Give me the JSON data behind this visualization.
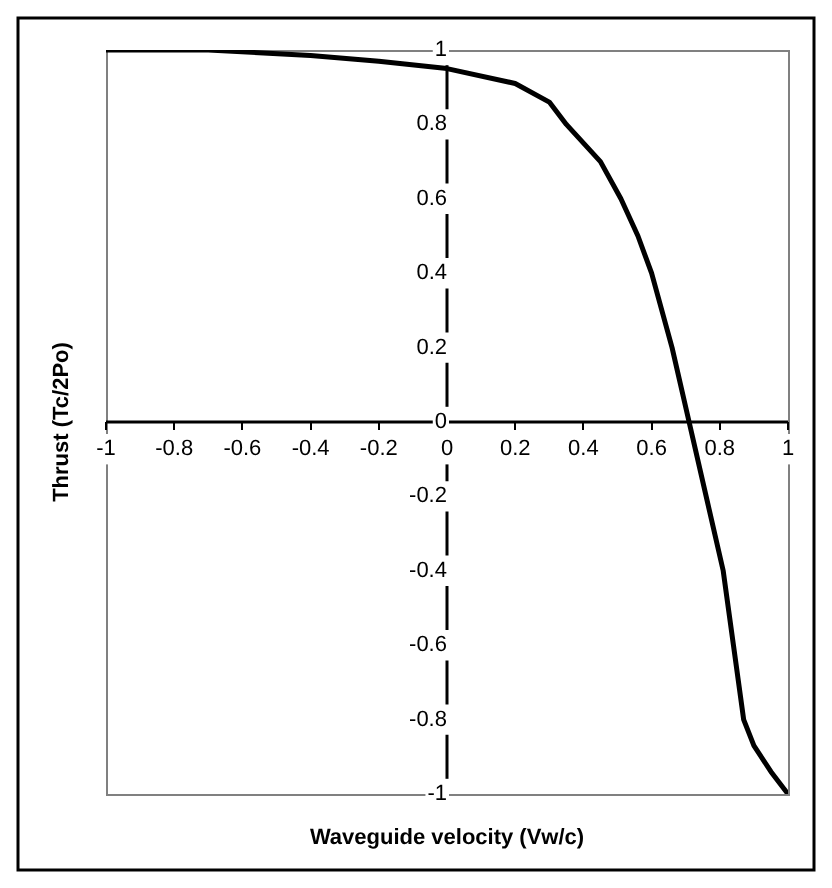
{
  "chart_data": {
    "type": "line",
    "xlabel": "Waveguide velocity (Vw/c)",
    "ylabel": "Thrust (Tc/2Po)",
    "xlim": [
      -1,
      1
    ],
    "ylim": [
      -1,
      1
    ],
    "xticks": [
      -1,
      -0.8,
      -0.6,
      -0.4,
      -0.2,
      0,
      0.2,
      0.4,
      0.6,
      0.8,
      1
    ],
    "yticks": [
      -1,
      -0.8,
      -0.6,
      -0.4,
      -0.2,
      0,
      0.2,
      0.4,
      0.6,
      0.8,
      1
    ],
    "grid": false,
    "legend": false,
    "marker": "none",
    "line_style": "solid",
    "series": [
      {
        "color": "#000000",
        "x": [
          -1,
          -0.7,
          -0.4,
          -0.2,
          0,
          0.2,
          0.3,
          0.35,
          0.45,
          0.51,
          0.56,
          0.6,
          0.66,
          0.71,
          0.76,
          0.81,
          0.84,
          0.87,
          0.9,
          0.95,
          1
        ],
        "values": [
          1,
          1,
          0.985,
          0.97,
          0.95,
          0.91,
          0.86,
          0.8,
          0.7,
          0.6,
          0.5,
          0.4,
          0.2,
          0,
          -0.2,
          -0.4,
          -0.6,
          -0.8,
          -0.87,
          -0.94,
          -1
        ]
      }
    ]
  }
}
